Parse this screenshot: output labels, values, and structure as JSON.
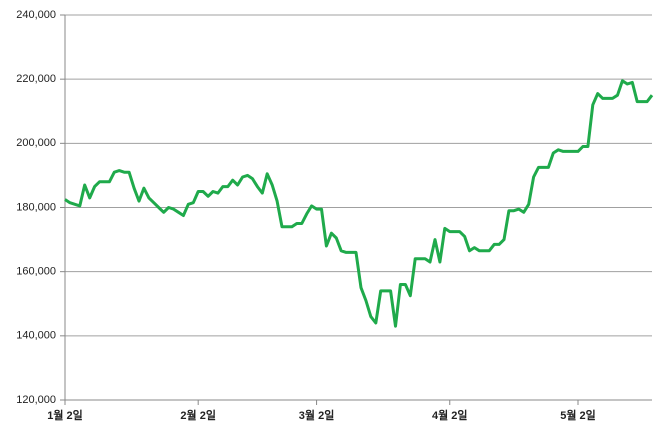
{
  "chart_data": {
    "type": "line",
    "categories": [
      "1월 2일",
      null,
      null,
      null,
      null,
      null,
      null,
      null,
      null,
      null,
      null,
      null,
      null,
      null,
      null,
      null,
      null,
      null,
      null,
      null,
      null,
      null,
      null,
      null,
      null,
      null,
      null,
      "2월 2일",
      null,
      null,
      null,
      null,
      null,
      null,
      null,
      null,
      null,
      null,
      null,
      null,
      null,
      null,
      null,
      null,
      null,
      null,
      null,
      null,
      null,
      null,
      null,
      "3월 2일",
      null,
      null,
      null,
      null,
      null,
      null,
      null,
      null,
      null,
      null,
      null,
      null,
      null,
      null,
      null,
      null,
      null,
      null,
      null,
      null,
      null,
      null,
      null,
      null,
      null,
      null,
      "4월 2일",
      null,
      null,
      null,
      null,
      null,
      null,
      null,
      null,
      null,
      null,
      null,
      null,
      null,
      null,
      null,
      null,
      null,
      null,
      null,
      null,
      null,
      null,
      null,
      null,
      null,
      "5월 2일",
      null,
      null,
      null,
      null,
      null,
      null,
      null,
      null,
      null,
      null,
      null,
      null,
      null,
      null,
      null
    ],
    "series": [
      {
        "color": "#1faa4b",
        "values": [
          182500,
          181500,
          181000,
          180500,
          187000,
          183000,
          186500,
          188000,
          188000,
          188000,
          191000,
          191500,
          191000,
          191000,
          186000,
          182000,
          186000,
          183000,
          181500,
          180000,
          178500,
          180000,
          179500,
          178500,
          177500,
          181000,
          181500,
          185000,
          185000,
          183500,
          185000,
          184500,
          186500,
          186500,
          188500,
          187000,
          189500,
          190000,
          189000,
          186500,
          184500,
          190500,
          187000,
          182000,
          174000,
          174000,
          174000,
          175000,
          175000,
          178000,
          180500,
          179500,
          179500,
          168000,
          172000,
          170500,
          166500,
          166000,
          166000,
          166000,
          155000,
          151000,
          146000,
          144000,
          154000,
          154000,
          154000,
          143000,
          156000,
          156000,
          152500,
          164000,
          164000,
          164000,
          163000,
          170000,
          163000,
          173500,
          172500,
          172500,
          172500,
          171000,
          166500,
          167500,
          166500,
          166500,
          166500,
          168500,
          168500,
          170000,
          179000,
          179000,
          179500,
          178500,
          181000,
          189500,
          192500,
          192500,
          192500,
          197000,
          198000,
          197500,
          197500,
          197500,
          197500,
          199000,
          199000,
          212000,
          215500,
          214000,
          214000,
          214000,
          215000,
          219500,
          218500,
          219000,
          213000,
          213000,
          213000,
          215000
        ]
      }
    ],
    "ylim": [
      120000,
      240000
    ],
    "yticks": [
      {
        "value": 120000,
        "label": "120,000"
      },
      {
        "value": 140000,
        "label": "140,000"
      },
      {
        "value": 160000,
        "label": "160,000"
      },
      {
        "value": 180000,
        "label": "180,000"
      },
      {
        "value": 200000,
        "label": "200,000"
      },
      {
        "value": 220000,
        "label": "220,000"
      },
      {
        "value": 240000,
        "label": "240,000"
      }
    ],
    "grid": true
  }
}
